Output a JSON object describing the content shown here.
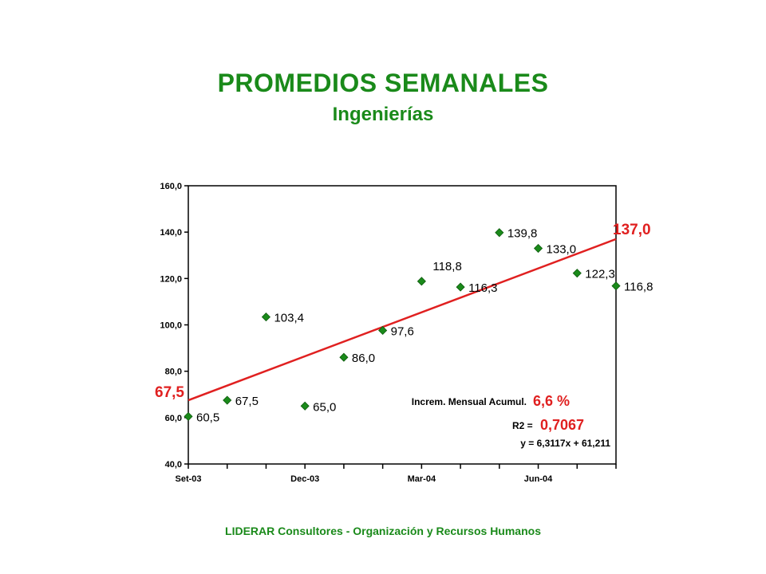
{
  "title": "PROMEDIOS SEMANALES",
  "subtitle": "Ingenierías",
  "footer": "LIDERAR Consultores - Organización y Recursos Humanos",
  "colors": {
    "title": "#1a8a1a",
    "marker": "#1a8a1a",
    "trendline": "#e02020",
    "annotation_red": "#e02020"
  },
  "chart_data": {
    "type": "scatter",
    "x_ticks": [
      "Set-03",
      "",
      "",
      "Dec-03",
      "",
      "",
      "Mar-04",
      "",
      "",
      "Jun-04",
      "",
      ""
    ],
    "x_labels_shown": [
      "Set-03",
      "Dec-03",
      "Mar-04",
      "Jun-04"
    ],
    "points": [
      {
        "x": 0,
        "y": 60.5,
        "label": "60,5"
      },
      {
        "x": 1,
        "y": 67.5,
        "label": "67,5"
      },
      {
        "x": 2,
        "y": 103.4,
        "label": "103,4"
      },
      {
        "x": 3,
        "y": 65.0,
        "label": "65,0"
      },
      {
        "x": 4,
        "y": 86.0,
        "label": "86,0"
      },
      {
        "x": 5,
        "y": 97.6,
        "label": "97,6"
      },
      {
        "x": 6,
        "y": 118.8,
        "label": "118,8"
      },
      {
        "x": 7,
        "y": 116.3,
        "label": "116,3"
      },
      {
        "x": 8,
        "y": 139.8,
        "label": "139,8"
      },
      {
        "x": 9,
        "y": 133.0,
        "label": "133,0"
      },
      {
        "x": 10,
        "y": 122.3,
        "label": "122,3"
      },
      {
        "x": 11,
        "y": 116.8,
        "label": "116,8"
      }
    ],
    "trendline": {
      "start": 67.5,
      "end": 137.0,
      "start_label": "67,5",
      "end_label": "137,0"
    },
    "y_ticks": [
      "40,0",
      "60,0",
      "80,0",
      "100,0",
      "120,0",
      "140,0",
      "160,0"
    ],
    "ylim": [
      40,
      160
    ],
    "annotations": {
      "increment_label": "Increm. Mensual Acumul.",
      "increment_value": "6,6 %",
      "r2_label": "R2 =",
      "r2_value": "0,7067",
      "equation": "y = 6,3117x + 61,211"
    },
    "grid": false
  }
}
